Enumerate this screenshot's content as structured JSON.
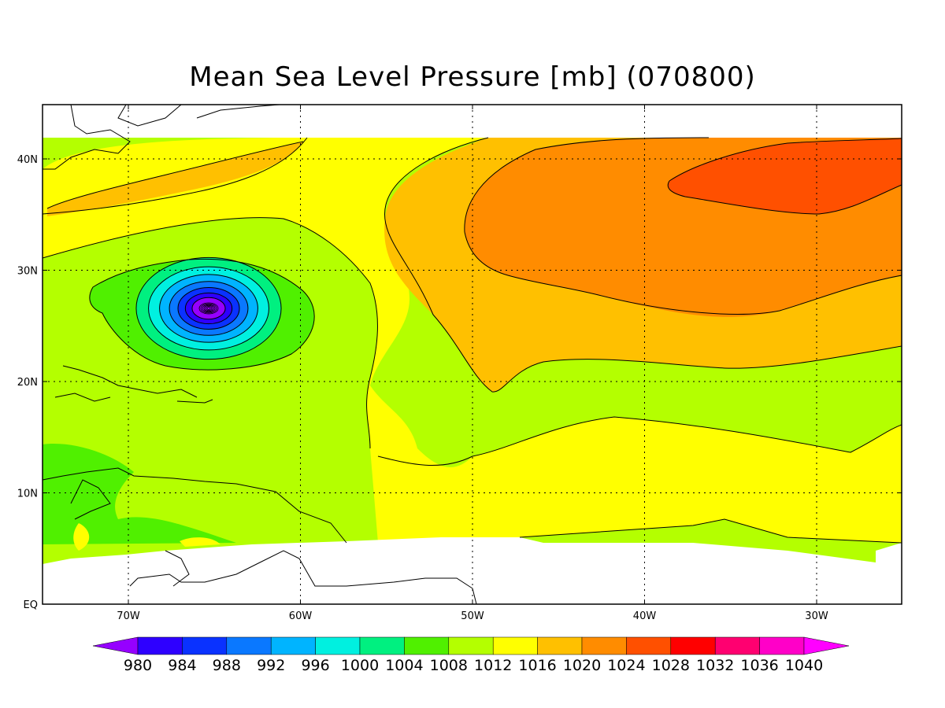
{
  "title": "Mean Sea Level Pressure [mb] (070800)",
  "x_ticks": [
    "70W",
    "60W",
    "50W",
    "40W",
    "30W"
  ],
  "y_ticks": [
    "EQ",
    "10N",
    "20N",
    "30N",
    "40N"
  ],
  "colorbar": {
    "labels": [
      "980",
      "984",
      "988",
      "992",
      "996",
      "1000",
      "1004",
      "1008",
      "1012",
      "1016",
      "1020",
      "1024",
      "1028",
      "1032",
      "1036",
      "1040"
    ],
    "colors": [
      "#9600ff",
      "#2e00ff",
      "#0a32ff",
      "#0a78ff",
      "#00b4ff",
      "#00f0e0",
      "#00f080",
      "#50f000",
      "#b4ff00",
      "#ffff00",
      "#ffc000",
      "#ff8c00",
      "#ff5000",
      "#ff0000",
      "#ff0070",
      "#ff00c8",
      "#ff00ff"
    ]
  },
  "field_colors": {
    "p1008": "#50f000",
    "p1012": "#b4ff00",
    "p1016": "#ffff00",
    "p1020": "#ffc000",
    "p1024": "#ff8c00",
    "p1028": "#ff5000"
  },
  "low_center_colors": [
    "#50f000",
    "#00f080",
    "#00f0e0",
    "#00b4ff",
    "#0a78ff",
    "#0a32ff",
    "#2e00ff",
    "#9600ff"
  ]
}
